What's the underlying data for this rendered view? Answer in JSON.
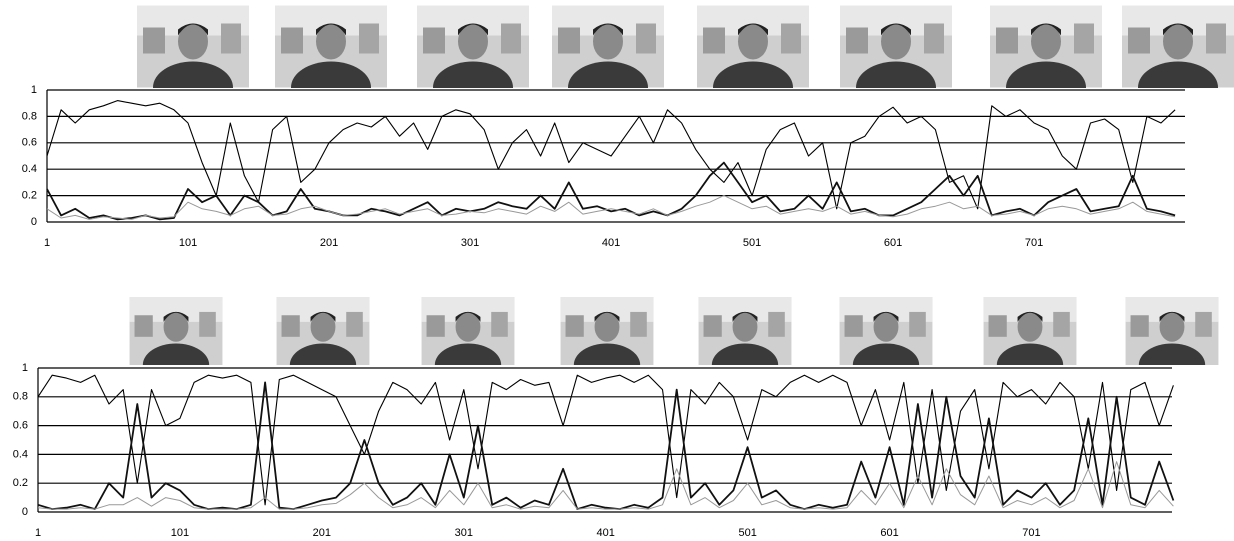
{
  "chart_data": [
    {
      "type": "line",
      "xlim": [
        1,
        808
      ],
      "xticks": [
        1,
        101,
        201,
        301,
        401,
        501,
        601,
        701
      ],
      "ylim": [
        0,
        1
      ],
      "yticks": [
        0,
        0.2,
        0.4,
        0.6,
        0.8,
        1
      ],
      "grid": true,
      "x": [
        1,
        11,
        21,
        31,
        41,
        51,
        61,
        71,
        81,
        91,
        101,
        111,
        121,
        131,
        141,
        151,
        161,
        171,
        181,
        191,
        201,
        211,
        221,
        231,
        241,
        251,
        261,
        271,
        281,
        291,
        301,
        311,
        321,
        331,
        341,
        351,
        361,
        371,
        381,
        391,
        401,
        411,
        421,
        431,
        441,
        451,
        461,
        471,
        481,
        491,
        501,
        511,
        521,
        531,
        541,
        551,
        561,
        571,
        581,
        591,
        601,
        611,
        621,
        631,
        641,
        651,
        661,
        671,
        681,
        691,
        701,
        711,
        721,
        731,
        741,
        751,
        761,
        771,
        781,
        791,
        801
      ],
      "series": [
        {
          "color": "#000000",
          "values": [
            0.5,
            0.85,
            0.75,
            0.85,
            0.88,
            0.92,
            0.9,
            0.88,
            0.9,
            0.85,
            0.75,
            0.45,
            0.2,
            0.75,
            0.35,
            0.15,
            0.7,
            0.8,
            0.3,
            0.4,
            0.6,
            0.7,
            0.75,
            0.72,
            0.8,
            0.65,
            0.75,
            0.55,
            0.8,
            0.85,
            0.82,
            0.7,
            0.4,
            0.6,
            0.7,
            0.5,
            0.75,
            0.45,
            0.6,
            0.55,
            0.5,
            0.65,
            0.8,
            0.6,
            0.85,
            0.75,
            0.55,
            0.4,
            0.3,
            0.45,
            0.2,
            0.55,
            0.7,
            0.75,
            0.5,
            0.6,
            0.1,
            0.6,
            0.65,
            0.8,
            0.87,
            0.75,
            0.8,
            0.7,
            0.3,
            0.35,
            0.1,
            0.88,
            0.8,
            0.85,
            0.75,
            0.7,
            0.5,
            0.4,
            0.75,
            0.78,
            0.7,
            0.3,
            0.8,
            0.75,
            0.85
          ]
        },
        {
          "color": "#111111",
          "values": [
            0.25,
            0.05,
            0.1,
            0.03,
            0.05,
            0.02,
            0.03,
            0.05,
            0.02,
            0.03,
            0.25,
            0.15,
            0.2,
            0.05,
            0.2,
            0.15,
            0.05,
            0.08,
            0.25,
            0.1,
            0.08,
            0.05,
            0.05,
            0.1,
            0.08,
            0.05,
            0.1,
            0.15,
            0.05,
            0.1,
            0.08,
            0.1,
            0.15,
            0.12,
            0.1,
            0.2,
            0.1,
            0.3,
            0.1,
            0.12,
            0.08,
            0.1,
            0.05,
            0.08,
            0.05,
            0.1,
            0.2,
            0.35,
            0.45,
            0.3,
            0.15,
            0.2,
            0.08,
            0.1,
            0.2,
            0.1,
            0.3,
            0.08,
            0.1,
            0.05,
            0.05,
            0.1,
            0.15,
            0.25,
            0.35,
            0.2,
            0.35,
            0.05,
            0.08,
            0.1,
            0.05,
            0.15,
            0.2,
            0.25,
            0.08,
            0.1,
            0.12,
            0.35,
            0.1,
            0.08,
            0.05
          ]
        },
        {
          "color": "#999999",
          "values": [
            0.1,
            0.03,
            0.05,
            0.02,
            0.04,
            0.03,
            0.02,
            0.05,
            0.03,
            0.04,
            0.15,
            0.1,
            0.08,
            0.05,
            0.1,
            0.12,
            0.05,
            0.06,
            0.1,
            0.12,
            0.08,
            0.05,
            0.06,
            0.08,
            0.1,
            0.06,
            0.08,
            0.1,
            0.05,
            0.06,
            0.08,
            0.07,
            0.1,
            0.08,
            0.06,
            0.12,
            0.08,
            0.15,
            0.06,
            0.08,
            0.1,
            0.08,
            0.06,
            0.1,
            0.05,
            0.08,
            0.12,
            0.15,
            0.2,
            0.15,
            0.1,
            0.12,
            0.06,
            0.08,
            0.1,
            0.08,
            0.12,
            0.06,
            0.08,
            0.05,
            0.04,
            0.06,
            0.1,
            0.12,
            0.15,
            0.1,
            0.12,
            0.05,
            0.06,
            0.08,
            0.05,
            0.1,
            0.12,
            0.1,
            0.06,
            0.08,
            0.1,
            0.15,
            0.08,
            0.06,
            0.04
          ]
        }
      ]
    },
    {
      "type": "line",
      "xlim": [
        1,
        800
      ],
      "xticks": [
        1,
        101,
        201,
        301,
        401,
        501,
        601,
        701
      ],
      "ylim": [
        0,
        1
      ],
      "yticks": [
        0,
        0.2,
        0.4,
        0.6,
        0.8,
        1
      ],
      "grid": true,
      "x": [
        1,
        11,
        21,
        31,
        41,
        51,
        61,
        71,
        81,
        91,
        101,
        111,
        121,
        131,
        141,
        151,
        161,
        171,
        181,
        191,
        201,
        211,
        221,
        231,
        241,
        251,
        261,
        271,
        281,
        291,
        301,
        311,
        321,
        331,
        341,
        351,
        361,
        371,
        381,
        391,
        401,
        411,
        421,
        431,
        441,
        451,
        461,
        471,
        481,
        491,
        501,
        511,
        521,
        531,
        541,
        551,
        561,
        571,
        581,
        591,
        601,
        611,
        621,
        631,
        641,
        651,
        661,
        671,
        681,
        691,
        701,
        711,
        721,
        731,
        741,
        751,
        761,
        771,
        781,
        791,
        801
      ],
      "series": [
        {
          "color": "#000000",
          "values": [
            0.8,
            0.95,
            0.93,
            0.9,
            0.95,
            0.75,
            0.85,
            0.2,
            0.85,
            0.6,
            0.65,
            0.9,
            0.95,
            0.93,
            0.95,
            0.9,
            0.05,
            0.92,
            0.95,
            0.9,
            0.85,
            0.8,
            0.6,
            0.4,
            0.7,
            0.9,
            0.85,
            0.75,
            0.9,
            0.5,
            0.85,
            0.3,
            0.9,
            0.85,
            0.92,
            0.88,
            0.9,
            0.6,
            0.95,
            0.9,
            0.93,
            0.95,
            0.9,
            0.95,
            0.85,
            0.1,
            0.85,
            0.75,
            0.9,
            0.8,
            0.5,
            0.85,
            0.8,
            0.9,
            0.95,
            0.9,
            0.95,
            0.9,
            0.6,
            0.85,
            0.5,
            0.9,
            0.2,
            0.85,
            0.15,
            0.7,
            0.85,
            0.3,
            0.9,
            0.8,
            0.85,
            0.75,
            0.9,
            0.8,
            0.3,
            0.9,
            0.15,
            0.85,
            0.9,
            0.6,
            0.88
          ]
        },
        {
          "color": "#111111",
          "values": [
            0.05,
            0.02,
            0.03,
            0.05,
            0.02,
            0.2,
            0.1,
            0.75,
            0.1,
            0.2,
            0.15,
            0.05,
            0.02,
            0.03,
            0.02,
            0.05,
            0.9,
            0.03,
            0.02,
            0.05,
            0.08,
            0.1,
            0.2,
            0.5,
            0.2,
            0.05,
            0.1,
            0.2,
            0.05,
            0.4,
            0.1,
            0.6,
            0.05,
            0.1,
            0.03,
            0.08,
            0.05,
            0.3,
            0.02,
            0.05,
            0.03,
            0.02,
            0.05,
            0.03,
            0.1,
            0.85,
            0.1,
            0.2,
            0.05,
            0.15,
            0.45,
            0.1,
            0.15,
            0.05,
            0.02,
            0.05,
            0.03,
            0.05,
            0.35,
            0.1,
            0.45,
            0.05,
            0.75,
            0.1,
            0.8,
            0.25,
            0.1,
            0.65,
            0.05,
            0.15,
            0.1,
            0.2,
            0.05,
            0.15,
            0.65,
            0.05,
            0.8,
            0.1,
            0.05,
            0.35,
            0.08
          ]
        },
        {
          "color": "#999999",
          "values": [
            0.03,
            0.02,
            0.02,
            0.03,
            0.02,
            0.05,
            0.05,
            0.1,
            0.04,
            0.1,
            0.08,
            0.03,
            0.02,
            0.02,
            0.02,
            0.03,
            0.1,
            0.02,
            0.02,
            0.03,
            0.05,
            0.06,
            0.12,
            0.2,
            0.1,
            0.03,
            0.05,
            0.1,
            0.03,
            0.15,
            0.05,
            0.2,
            0.03,
            0.05,
            0.02,
            0.04,
            0.03,
            0.15,
            0.02,
            0.03,
            0.02,
            0.02,
            0.03,
            0.02,
            0.05,
            0.3,
            0.05,
            0.1,
            0.03,
            0.08,
            0.2,
            0.05,
            0.08,
            0.03,
            0.02,
            0.03,
            0.02,
            0.03,
            0.15,
            0.05,
            0.2,
            0.03,
            0.25,
            0.05,
            0.3,
            0.12,
            0.05,
            0.25,
            0.03,
            0.08,
            0.05,
            0.1,
            0.03,
            0.08,
            0.3,
            0.03,
            0.35,
            0.05,
            0.03,
            0.15,
            0.04
          ]
        }
      ]
    }
  ]
}
